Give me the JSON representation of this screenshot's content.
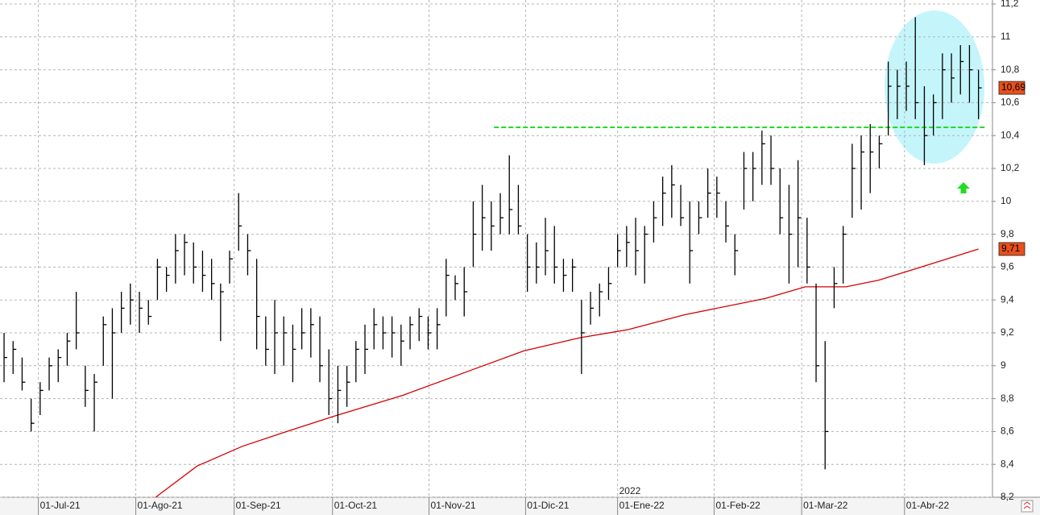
{
  "chart_data": {
    "type": "ohlc",
    "color": "#000000",
    "grid": true,
    "ylim": [
      8.2,
      11.2
    ],
    "yticks": [
      {
        "value": 8.2,
        "label": "8,2"
      },
      {
        "value": 8.4,
        "label": "8,4"
      },
      {
        "value": 8.6,
        "label": "8,6"
      },
      {
        "value": 8.8,
        "label": "8,8"
      },
      9,
      {
        "value": 9.2,
        "label": "9,2"
      },
      {
        "value": 9.4,
        "label": "9,4"
      },
      {
        "value": 9.6,
        "label": "9,6"
      },
      {
        "value": 9.8,
        "label": "9,8"
      },
      10,
      {
        "value": 10.2,
        "label": "10,2"
      },
      {
        "value": 10.4,
        "label": "10,4"
      },
      {
        "value": 10.6,
        "label": "10,6"
      },
      {
        "value": 10.8,
        "label": "10,8"
      },
      11,
      {
        "value": 11.2,
        "label": "11,2"
      }
    ],
    "xlim": [
      -0.45,
      109.55
    ],
    "xticks": [
      {
        "value": 3.8,
        "label": "01-Jul-21"
      },
      {
        "value": 14.6,
        "label": "01-Ago-21"
      },
      {
        "value": 25.5,
        "label": "01-Sep-21"
      },
      {
        "value": 36.4,
        "label": "01-Oct-21"
      },
      {
        "value": 47.1,
        "label": "01-Nov-21"
      },
      {
        "value": 57.8,
        "label": "01-Dic-21"
      },
      {
        "value": 68.0,
        "label": "01-Ene-22"
      },
      {
        "value": 78.7,
        "label": "01-Feb-22"
      },
      {
        "value": 88.4,
        "label": "01-Mar-22"
      },
      {
        "value": 99.8,
        "label": "01-Abr-22"
      }
    ],
    "year_label": "2022",
    "high": [
      9.2,
      9.15,
      9.05,
      8.8,
      8.9,
      9.05,
      9.1,
      9.2,
      9.45,
      9.0,
      8.95,
      9.3,
      9.35,
      9.45,
      9.5,
      9.45,
      9.4,
      9.65,
      9.6,
      9.8,
      9.8,
      9.75,
      9.7,
      9.65,
      9.5,
      9.7,
      10.05,
      9.8,
      9.65,
      9.3,
      9.4,
      9.3,
      9.25,
      9.35,
      9.35,
      9.3,
      9.1,
      9.0,
      9.0,
      9.15,
      9.25,
      9.35,
      9.3,
      9.3,
      9.25,
      9.3,
      9.35,
      9.3,
      9.35,
      9.65,
      9.55,
      9.6,
      10.0,
      10.1,
      10.0,
      10.05,
      10.28,
      10.1,
      9.8,
      9.75,
      9.9,
      9.85,
      9.65,
      9.65,
      9.4,
      9.45,
      9.5,
      9.6,
      9.8,
      9.85,
      9.9,
      9.85,
      10.0,
      10.15,
      10.22,
      10.1,
      10.0,
      10.0,
      10.2,
      10.15,
      10.0,
      9.8,
      10.3,
      10.3,
      10.43,
      10.4,
      10.2,
      10.1,
      10.25,
      9.9,
      9.5,
      9.15,
      9.6,
      9.85,
      10.35,
      10.4,
      10.47,
      10.4,
      10.85,
      10.8,
      10.85,
      11.12,
      10.7,
      10.65,
      10.9,
      10.9,
      10.95,
      10.95,
      10.8
    ],
    "low": [
      8.9,
      8.95,
      8.85,
      8.6,
      8.7,
      8.85,
      8.9,
      9.0,
      9.1,
      8.75,
      8.6,
      9.0,
      8.8,
      9.2,
      9.25,
      9.2,
      9.25,
      9.4,
      9.45,
      9.5,
      9.55,
      9.5,
      9.45,
      9.4,
      9.15,
      9.5,
      9.7,
      9.55,
      9.1,
      9.0,
      8.95,
      9.0,
      8.9,
      9.1,
      9.05,
      8.9,
      8.7,
      8.65,
      8.75,
      8.9,
      8.95,
      9.1,
      9.1,
      9.05,
      9.0,
      9.1,
      9.15,
      9.1,
      9.1,
      9.3,
      9.4,
      9.3,
      9.6,
      9.7,
      9.7,
      9.8,
      9.8,
      9.8,
      9.45,
      9.5,
      9.55,
      9.5,
      9.45,
      9.45,
      8.95,
      9.25,
      9.3,
      9.4,
      9.6,
      9.6,
      9.55,
      9.5,
      9.75,
      9.85,
      9.9,
      9.85,
      9.5,
      9.8,
      9.9,
      9.9,
      9.75,
      9.55,
      9.95,
      10.0,
      10.1,
      10.1,
      9.8,
      9.5,
      9.6,
      9.5,
      8.9,
      8.37,
      9.35,
      9.5,
      9.9,
      9.95,
      10.05,
      10.2,
      10.4,
      10.5,
      10.55,
      10.5,
      10.22,
      10.4,
      10.5,
      10.6,
      10.65,
      10.6,
      10.5
    ],
    "close": [
      9.05,
      9.1,
      8.9,
      8.65,
      8.85,
      9.0,
      9.05,
      9.15,
      9.2,
      8.85,
      8.9,
      9.25,
      9.2,
      9.35,
      9.4,
      9.35,
      9.3,
      9.6,
      9.55,
      9.7,
      9.75,
      9.6,
      9.55,
      9.5,
      9.45,
      9.65,
      9.85,
      9.7,
      9.3,
      9.1,
      9.2,
      9.2,
      9.1,
      9.2,
      9.25,
      9.0,
      8.8,
      8.85,
      8.9,
      9.1,
      9.1,
      9.25,
      9.2,
      9.2,
      9.15,
      9.25,
      9.3,
      9.2,
      9.25,
      9.55,
      9.5,
      9.45,
      9.8,
      9.9,
      9.85,
      9.9,
      9.95,
      9.85,
      9.6,
      9.6,
      9.7,
      9.6,
      9.55,
      9.6,
      9.2,
      9.35,
      9.45,
      9.5,
      9.7,
      9.75,
      9.7,
      9.8,
      9.9,
      10.05,
      10.1,
      9.9,
      9.7,
      9.9,
      10.05,
      10.05,
      9.85,
      9.7,
      10.2,
      10.2,
      10.35,
      10.2,
      9.9,
      9.8,
      9.9,
      9.6,
      9.0,
      8.6,
      9.5,
      9.8,
      10.2,
      10.3,
      10.3,
      10.35,
      10.7,
      10.7,
      10.7,
      10.6,
      10.4,
      10.6,
      10.8,
      10.75,
      10.85,
      10.8,
      10.69
    ],
    "moving_average": {
      "color": "#d40000",
      "x": [
        16.8,
        21.4,
        26.4,
        30.8,
        36.4,
        44.2,
        53.1,
        57.6,
        63.8,
        69.2,
        75.4,
        84.4,
        88.8,
        93.3,
        96.9,
        102.2,
        108
      ],
      "values": [
        8.2,
        8.39,
        8.51,
        8.59,
        8.69,
        8.82,
        9.0,
        9.09,
        9.17,
        9.22,
        9.31,
        9.41,
        9.48,
        9.48,
        9.52,
        9.61,
        9.71
      ]
    },
    "level": {
      "color": "#22dd22",
      "y": 10.45,
      "x": [
        54.3,
        108.7
      ]
    },
    "last_price": {
      "value": 10.69,
      "label": "10,69"
    },
    "ma_price": {
      "value": 9.71,
      "label": "9,71"
    }
  }
}
